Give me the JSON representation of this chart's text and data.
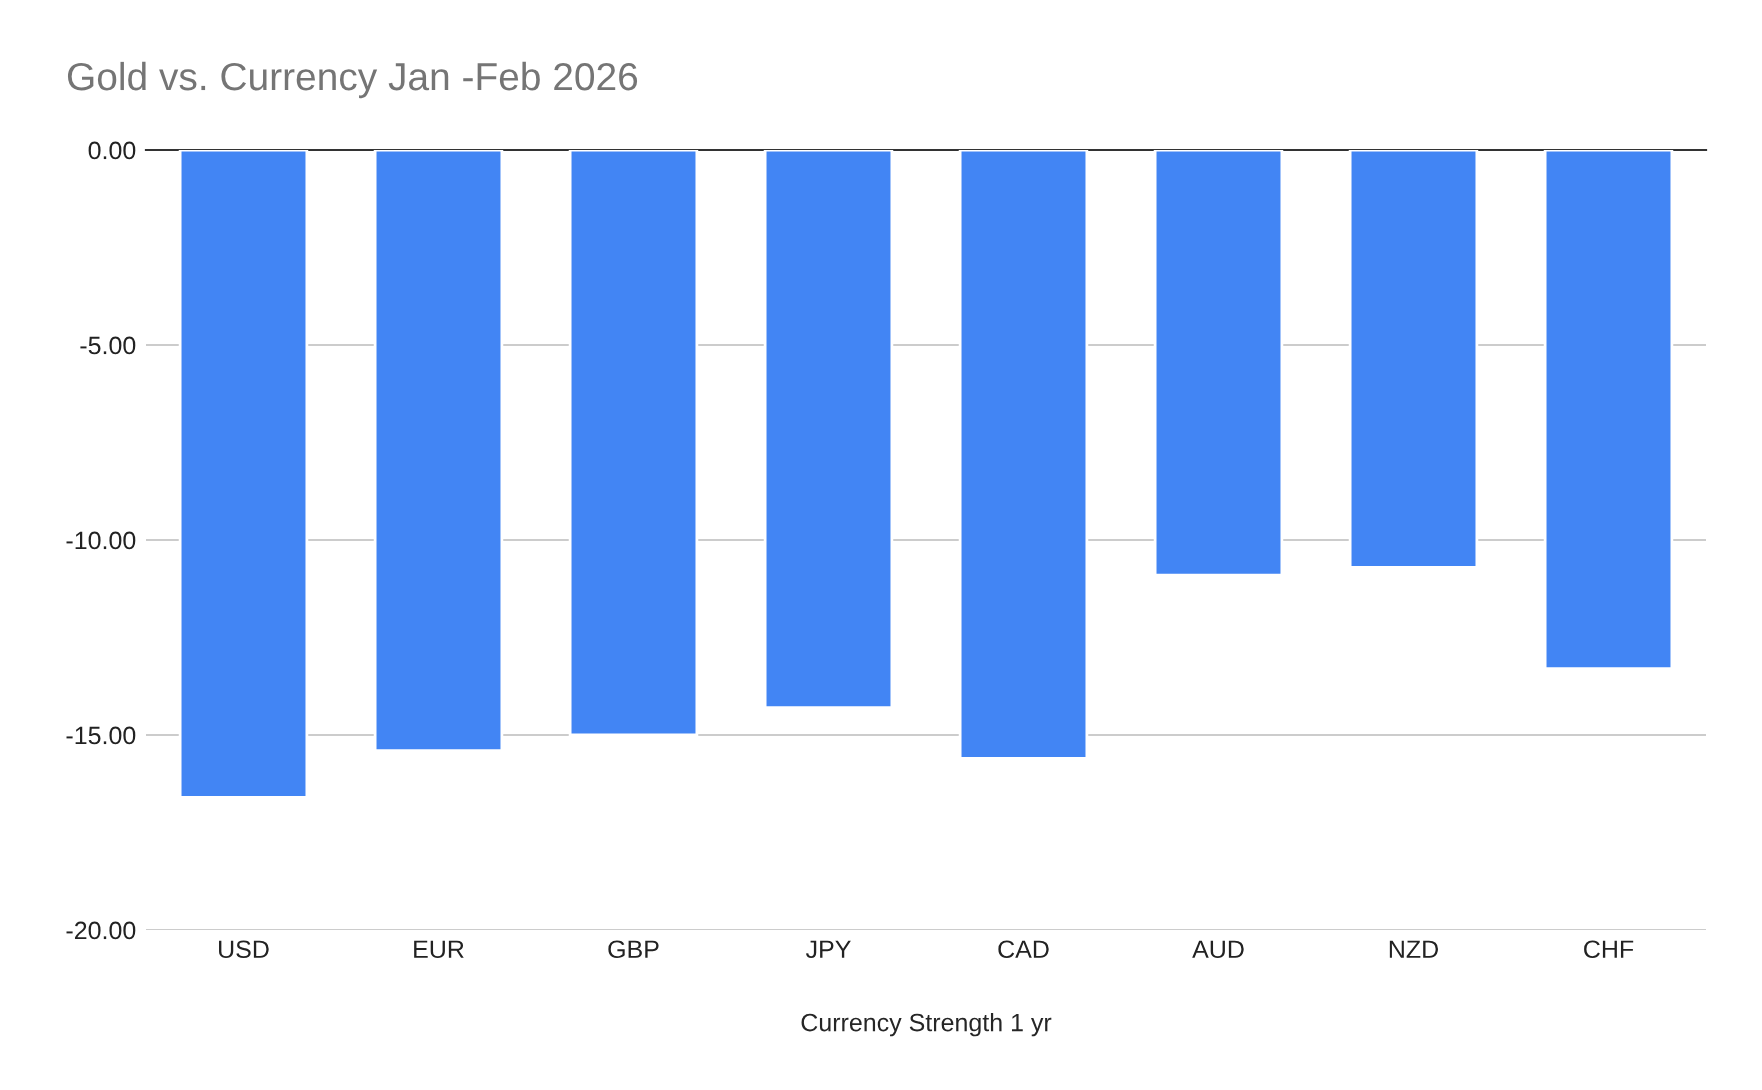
{
  "chart_data": {
    "type": "bar",
    "title": "Gold vs. Currency Jan -Feb 2026",
    "xlabel": "Currency Strength 1 yr",
    "categories": [
      "USD",
      "EUR",
      "GBP",
      "JPY",
      "CAD",
      "AUD",
      "NZD",
      "CHF"
    ],
    "values": [
      -16.6,
      -15.4,
      -15.0,
      -14.3,
      -15.6,
      -10.9,
      -10.7,
      -13.3
    ],
    "color": "#4285f4",
    "ylim": [
      -20,
      0
    ],
    "yticks": [
      {
        "value": 0,
        "label": "0.00"
      },
      {
        "value": -5,
        "label": "-5.00"
      },
      {
        "value": -10,
        "label": "-10.00"
      },
      {
        "value": -15,
        "label": "-15.00"
      },
      {
        "value": -20,
        "label": "-20.00"
      }
    ],
    "grid": "y"
  }
}
